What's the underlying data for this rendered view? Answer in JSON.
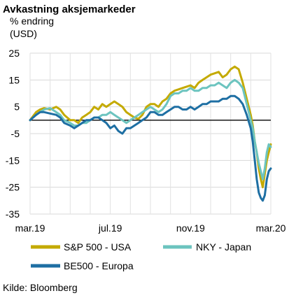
{
  "chart_data": {
    "type": "line",
    "title": "Avkastning aksjemarkeder",
    "ylabel_lines": [
      "% endring",
      "(USD)"
    ],
    "xlabel": "",
    "ylim": [
      -35,
      25
    ],
    "yticks": [
      25,
      15,
      5,
      -5,
      -15,
      -25,
      -35
    ],
    "xticks": [
      {
        "label": "mar.19",
        "x": 0
      },
      {
        "label": "jul.19",
        "x": 4
      },
      {
        "label": "nov.19",
        "x": 8
      },
      {
        "label": "mar.20",
        "x": 12
      }
    ],
    "x_unit": "months since mar.19",
    "grid": true,
    "legend_position": "bottom",
    "source": "Kilde: Bloomberg",
    "series": [
      {
        "name": "S&P 500 - USA",
        "color": "#c4aa00",
        "x": [
          0,
          0.3,
          0.5,
          0.7,
          1.0,
          1.3,
          1.5,
          1.7,
          2.0,
          2.2,
          2.4,
          2.6,
          2.8,
          3.0,
          3.2,
          3.4,
          3.6,
          3.8,
          4.0,
          4.2,
          4.4,
          4.6,
          4.8,
          5.0,
          5.2,
          5.4,
          5.6,
          5.8,
          6.0,
          6.2,
          6.4,
          6.6,
          6.8,
          7.0,
          7.2,
          7.4,
          7.6,
          7.8,
          8.0,
          8.2,
          8.4,
          8.6,
          8.8,
          9.0,
          9.2,
          9.4,
          9.6,
          9.8,
          10.0,
          10.2,
          10.4,
          10.6,
          10.8,
          11.0,
          11.1,
          11.2,
          11.3,
          11.4,
          11.5,
          11.6,
          11.7,
          11.8,
          11.9,
          12.0
        ],
        "values": [
          0,
          3,
          4,
          4.5,
          4,
          5,
          4,
          2,
          0,
          0,
          -1,
          1,
          2,
          3,
          5,
          4,
          6,
          5,
          6,
          7,
          6,
          5,
          3,
          2,
          1,
          0.5,
          2,
          5,
          6,
          6,
          5,
          7,
          8,
          10,
          11,
          11.5,
          12,
          12.5,
          13,
          12,
          14,
          15,
          16,
          17,
          17.5,
          18,
          16,
          17,
          19,
          20,
          19,
          14,
          8,
          2,
          -2,
          -8,
          -12,
          -18,
          -22,
          -25,
          -20,
          -15,
          -12,
          -9
        ]
      },
      {
        "name": "NKY - Japan",
        "color": "#6cc4bf",
        "x": [
          0,
          0.3,
          0.5,
          0.7,
          1.0,
          1.3,
          1.5,
          1.7,
          2.0,
          2.2,
          2.4,
          2.6,
          2.8,
          3.0,
          3.2,
          3.4,
          3.6,
          3.8,
          4.0,
          4.2,
          4.4,
          4.6,
          4.8,
          5.0,
          5.2,
          5.4,
          5.6,
          5.8,
          6.0,
          6.2,
          6.4,
          6.6,
          6.8,
          7.0,
          7.2,
          7.4,
          7.6,
          7.8,
          8.0,
          8.2,
          8.4,
          8.6,
          8.8,
          9.0,
          9.2,
          9.4,
          9.6,
          9.8,
          10.0,
          10.2,
          10.4,
          10.6,
          10.8,
          11.0,
          11.1,
          11.2,
          11.3,
          11.4,
          11.5,
          11.6,
          11.7,
          11.8,
          11.9,
          12.0
        ],
        "values": [
          0,
          2,
          3,
          4,
          4.5,
          3,
          2,
          0,
          -1,
          -2,
          -2,
          -1,
          -1,
          0,
          1,
          1,
          2,
          2,
          3,
          2,
          1,
          0,
          -1,
          0,
          1,
          2,
          3,
          4,
          5,
          4,
          3,
          4,
          6,
          9,
          10,
          10,
          11,
          11,
          12,
          11,
          11,
          12,
          12,
          13,
          13,
          14,
          13,
          12,
          14,
          15,
          14,
          12,
          6,
          0,
          -3,
          -8,
          -12,
          -16,
          -19,
          -22,
          -18,
          -12,
          -9,
          -10
        ]
      },
      {
        "name": "BE500 - Europa",
        "color": "#1e6fa3",
        "x": [
          0,
          0.3,
          0.5,
          0.7,
          1.0,
          1.3,
          1.5,
          1.7,
          2.0,
          2.2,
          2.4,
          2.6,
          2.8,
          3.0,
          3.2,
          3.4,
          3.6,
          3.8,
          4.0,
          4.2,
          4.4,
          4.6,
          4.8,
          5.0,
          5.2,
          5.4,
          5.6,
          5.8,
          6.0,
          6.2,
          6.4,
          6.6,
          6.8,
          7.0,
          7.2,
          7.4,
          7.6,
          7.8,
          8.0,
          8.2,
          8.4,
          8.6,
          8.8,
          9.0,
          9.2,
          9.4,
          9.6,
          9.8,
          10.0,
          10.2,
          10.4,
          10.6,
          10.8,
          11.0,
          11.1,
          11.2,
          11.3,
          11.4,
          11.5,
          11.6,
          11.7,
          11.8,
          11.9,
          12.0
        ],
        "values": [
          0,
          2,
          3,
          3,
          2.5,
          2,
          1,
          -1,
          -2,
          -3,
          -2,
          -1,
          0,
          0,
          1,
          1,
          0,
          -1,
          -3,
          -2,
          -4,
          -5,
          -3,
          -3,
          -2,
          -1,
          0,
          1,
          3,
          3,
          2,
          2,
          3,
          4,
          5,
          5,
          4,
          4,
          5,
          4,
          5,
          6,
          6,
          7,
          7,
          7,
          8,
          8,
          9,
          9,
          8,
          6,
          2,
          -3,
          -8,
          -15,
          -22,
          -27,
          -29,
          -30,
          -28,
          -22,
          -19,
          -18
        ]
      }
    ]
  }
}
